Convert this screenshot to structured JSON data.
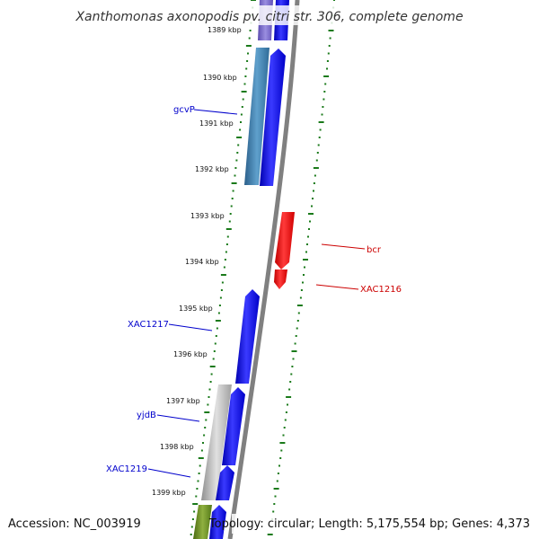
{
  "title": "Xanthomonas axonopodis pv. citri str. 306, complete genome",
  "footer": {
    "accession": "Accession: NC_003919",
    "summary": "Topology: circular; Length: 5,175,554 bp; Genes: 4,373"
  },
  "ticks": [
    {
      "label": "1389 kbp"
    },
    {
      "label": "1390 kbp"
    },
    {
      "label": "1391 kbp"
    },
    {
      "label": "1392 kbp"
    },
    {
      "label": "1393 kbp"
    },
    {
      "label": "1394 kbp"
    },
    {
      "label": "1395 kbp"
    },
    {
      "label": "1396 kbp"
    },
    {
      "label": "1397 kbp"
    },
    {
      "label": "1398 kbp"
    },
    {
      "label": "1399 kbp"
    }
  ],
  "gene_labels": [
    {
      "text": "gcvP",
      "color": "#0000cc"
    },
    {
      "text": "XAC1217",
      "color": "#0000cc"
    },
    {
      "text": "yjdB",
      "color": "#0000cc"
    },
    {
      "text": "XAC1219",
      "color": "#0000cc"
    },
    {
      "text": "bcr",
      "color": "#cc0000"
    },
    {
      "text": "XAC1216",
      "color": "#cc0000"
    }
  ],
  "colors": {
    "forward_gene": "#0000ff",
    "reverse_gene": "#ff0000",
    "backbone": "#808080",
    "tick_dots": "#1a7a1a",
    "feature_purple": "#7a6ac8",
    "feature_steelblue": "#3d7fb0",
    "feature_gray": "#b8b8b8",
    "feature_olive": "#6b8e23"
  }
}
